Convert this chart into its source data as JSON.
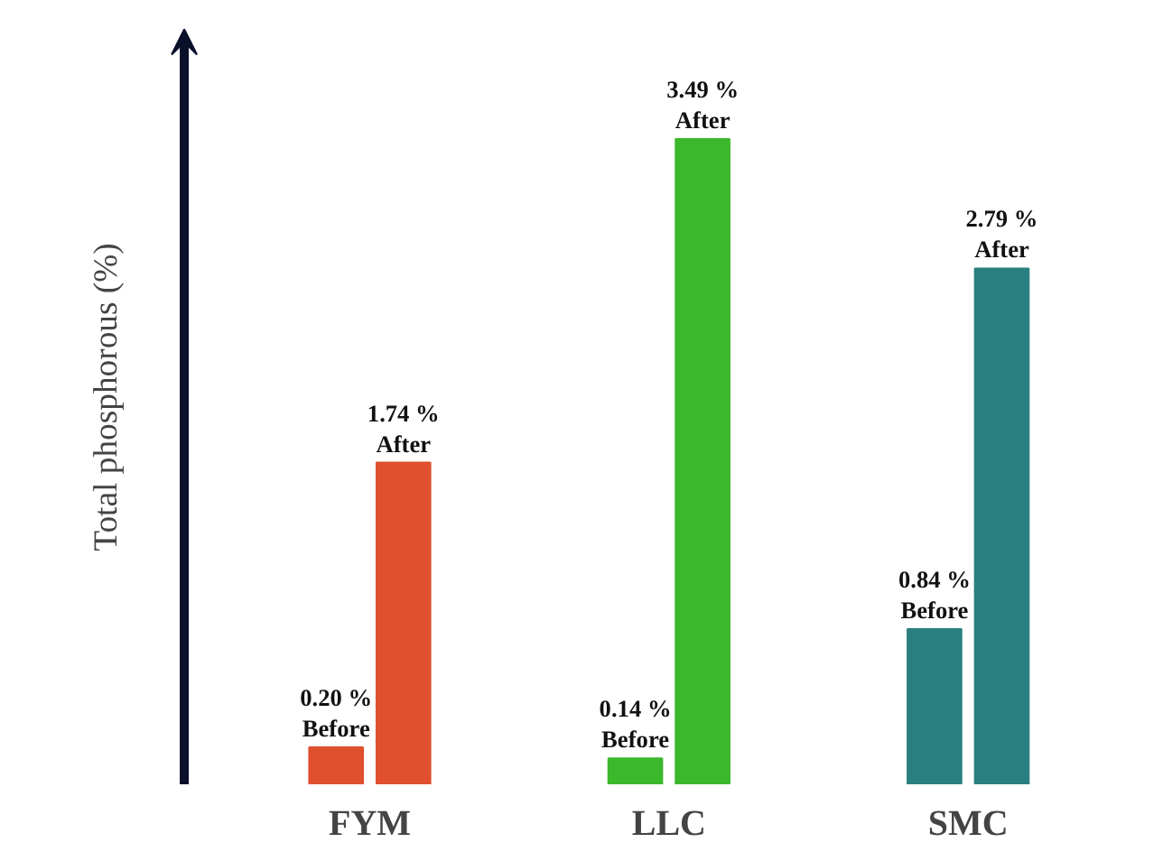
{
  "chart_data": {
    "type": "bar",
    "ylabel": "Total phosphorous (%)",
    "categories": [
      "FYM",
      "LLC",
      "SMC"
    ],
    "series": [
      {
        "name": "Before",
        "colors": [
          "#e0502f",
          "#3cb82c",
          "#2a7f80"
        ],
        "values": [
          0.2,
          0.14,
          0.84
        ],
        "value_labels": [
          "0.20 %",
          "0.14 %",
          "0.84 %"
        ]
      },
      {
        "name": "After",
        "colors": [
          "#e0502f",
          "#3cb82c",
          "#2a7f80"
        ],
        "values": [
          1.74,
          3.49,
          2.79
        ],
        "value_labels": [
          "1.74 %",
          "3.49 %",
          "2.79 %"
        ]
      }
    ],
    "tick_labels": "x",
    "grid": false
  }
}
